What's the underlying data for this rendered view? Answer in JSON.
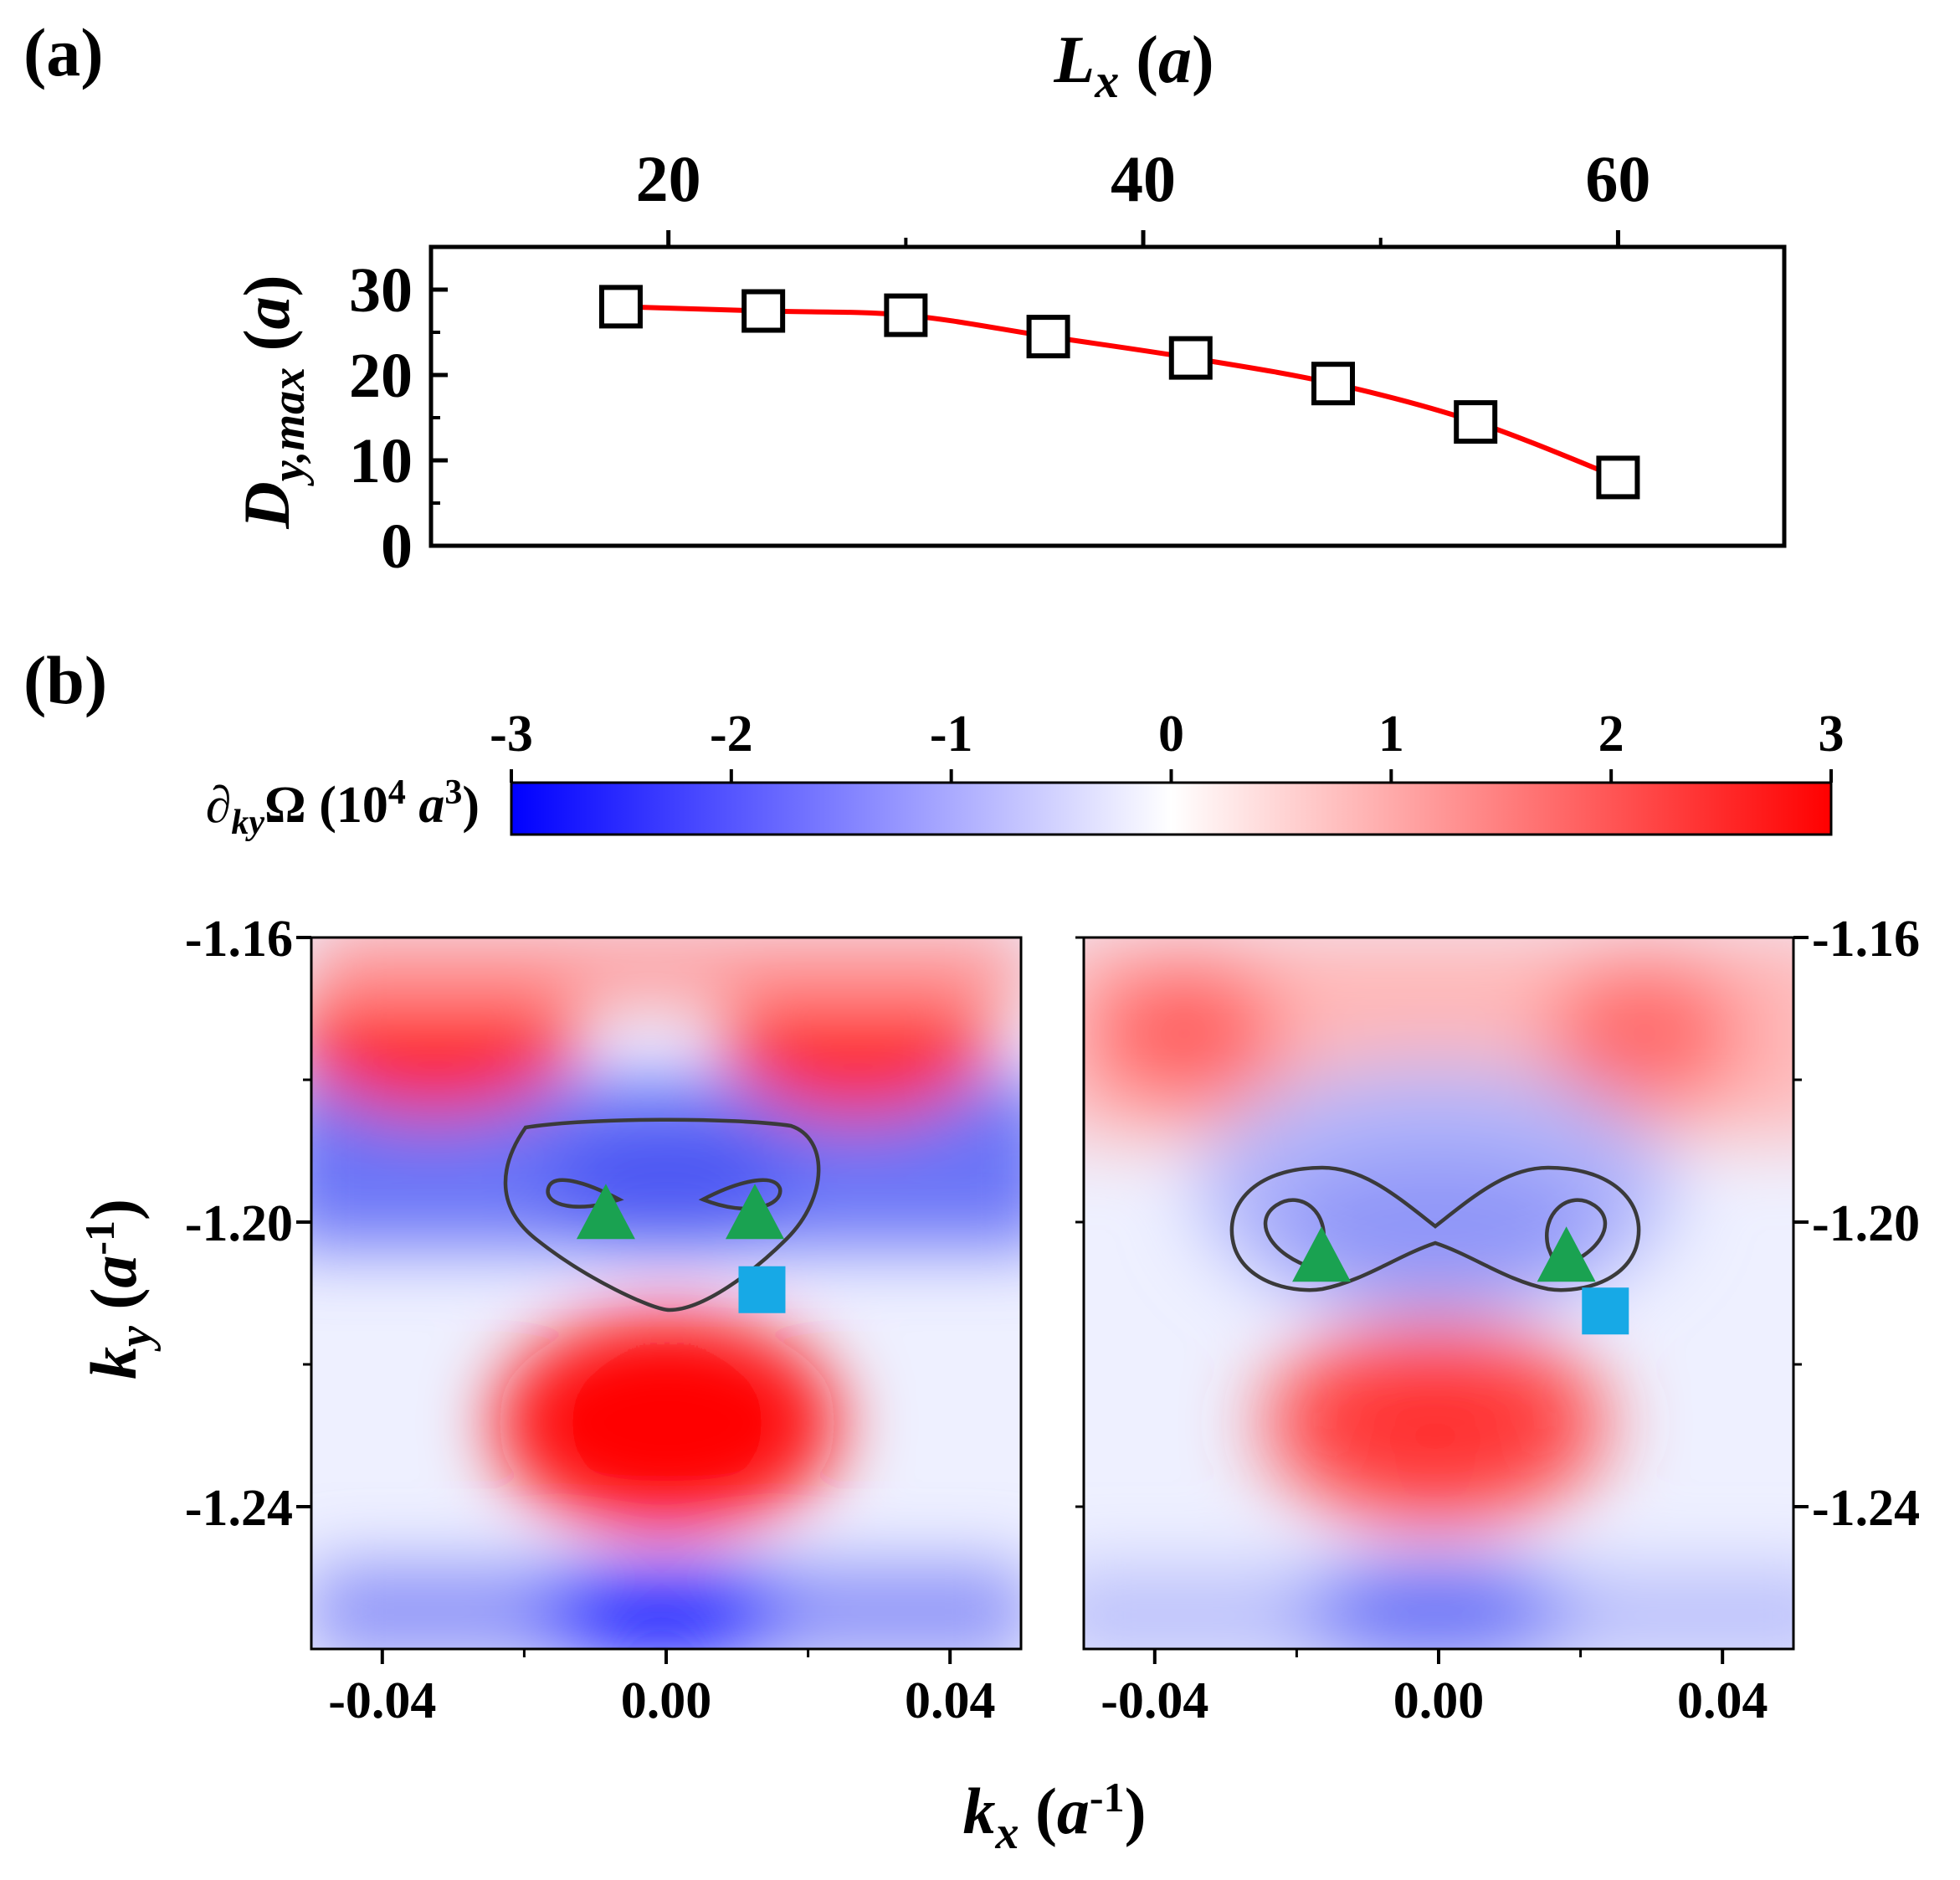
{
  "chart_data": [
    {
      "panel": "(a)",
      "type": "line",
      "xlabel_main": "L",
      "xlabel_sub": "x",
      "xlabel_unit": " (a)",
      "xlabel_unit_open": " (",
      "xlabel_unit_var": "a",
      "xlabel_unit_close": ")",
      "xaxis_position": "top",
      "xlim": [
        10,
        67
      ],
      "xticks": [
        20,
        40,
        60
      ],
      "ylabel_main": "D",
      "ylabel_sub": "y,max",
      "ylabel_unit_open": " (",
      "ylabel_unit_var": "a",
      "ylabel_unit_close": ")",
      "ylim": [
        0,
        35
      ],
      "yticks": [
        0,
        10,
        20,
        30
      ],
      "series": [
        {
          "name": "Dy,max",
          "marker": "open-square",
          "line_color": "#ff0000",
          "x": [
            18,
            24,
            30,
            36,
            42,
            48,
            54,
            60
          ],
          "y": [
            28.0,
            27.5,
            27.0,
            24.5,
            22.0,
            19.0,
            14.5,
            8.0
          ]
        }
      ]
    },
    {
      "panel": "(b)",
      "type": "heatmap",
      "colorbar": {
        "label_symbol": "∂",
        "label_sub": "ky",
        "label_rest": "Ω (10",
        "label_pow": "4",
        "label_unit": " a",
        "label_unit_pow": "3",
        "label_close": ")",
        "range": [
          -3,
          3
        ],
        "ticks": [
          "-3",
          "-2",
          "-1",
          "0",
          "1",
          "2",
          "3"
        ],
        "colors": {
          "negative": "#0000ff",
          "zero": "#ffffff",
          "positive": "#ff0000"
        }
      },
      "xlabel_main": "k",
      "xlabel_sub": "x",
      "xlabel_open": " (",
      "xlabel_var": "a",
      "xlabel_pow": "-1",
      "xlabel_close": ")",
      "ylabel_main": "k",
      "ylabel_sub": "y",
      "ylabel_open": " (",
      "ylabel_var": "a",
      "ylabel_pow": "-1",
      "ylabel_close": ")",
      "xlim": [
        -0.05,
        0.05
      ],
      "ylim": [
        -1.26,
        -1.16
      ],
      "xticks": [
        "-0.04",
        "0.00",
        "0.04"
      ],
      "yticks": [
        "-1.16",
        "-1.20",
        "-1.24"
      ],
      "panels": [
        {
          "name": "left",
          "markers": {
            "triangles": [
              [
                -0.0085,
                -1.1985
              ],
              [
                0.0125,
                -1.1985
              ]
            ],
            "squares": [
              [
                0.0135,
                -1.2095
              ]
            ]
          }
        },
        {
          "name": "right",
          "markers": {
            "triangles": [
              [
                -0.0165,
                -1.2045
              ],
              [
                0.018,
                -1.2045
              ]
            ],
            "squares": [
              [
                0.0235,
                -1.2125
              ]
            ]
          }
        }
      ]
    }
  ],
  "labels": {
    "panel_a": "(a)",
    "panel_b": "(b)"
  },
  "colors": {
    "triangle": "#1aa251",
    "square": "#17a9e6",
    "contour": "#3a3a3a",
    "line": "#ff0000"
  }
}
